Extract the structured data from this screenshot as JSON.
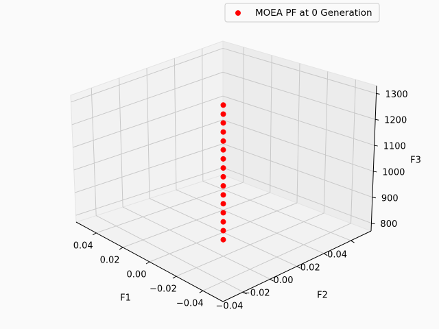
{
  "chart_data": {
    "type": "scatter",
    "projection": "3d",
    "series": [
      {
        "name": "MOEA PF at 0 Generation",
        "color": "#ff0000",
        "marker": "circle",
        "x": [
          0,
          0,
          0,
          0,
          0,
          0,
          0,
          0,
          0,
          0,
          0,
          0,
          0,
          0,
          0,
          0
        ],
        "y": [
          0,
          0,
          0,
          0,
          0,
          0,
          0,
          0,
          0,
          0,
          0,
          0,
          0,
          0,
          0,
          0
        ],
        "z": [
          1290,
          1253,
          1217,
          1180,
          1143,
          1107,
          1070,
          1033,
          997,
          960,
          923,
          887,
          850,
          813,
          777,
          740
        ]
      }
    ],
    "xlabel": "F1",
    "ylabel": "F2",
    "zlabel": "F3",
    "xlim": [
      -0.055,
      0.055
    ],
    "ylim": [
      -0.055,
      0.055
    ],
    "zlim": [
      770,
      1330
    ],
    "xticks": [
      -0.04,
      -0.02,
      0.0,
      0.02,
      0.04
    ],
    "yticks": [
      -0.04,
      -0.02,
      0.0,
      0.02,
      0.04
    ],
    "zticks": [
      800,
      900,
      1000,
      1100,
      1200,
      1300
    ],
    "xtick_labels": [
      "−0.04",
      "−0.02",
      "0.00",
      "0.02",
      "0.04"
    ],
    "ytick_labels": [
      "−0.04",
      "−0.02",
      "0.00",
      "0.02",
      "0.04"
    ],
    "ztick_labels": [
      "800",
      "900",
      "1000",
      "1100",
      "1200",
      "1300"
    ],
    "grid": true,
    "legend_position": "top-right"
  }
}
